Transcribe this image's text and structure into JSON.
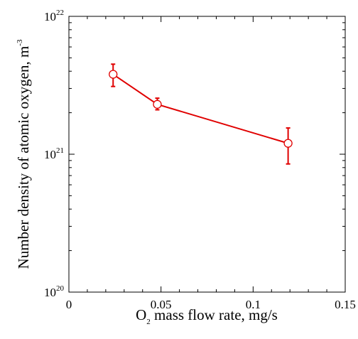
{
  "chart_data": {
    "type": "line",
    "xlabel_main": "O",
    "xlabel_sub": "2",
    "xlabel_rest": " mass flow rate, mg/s",
    "ylabel_main": "Number density of atomic oxygen, m",
    "ylabel_sup": "-3",
    "xlim": [
      0,
      0.15
    ],
    "ylim": [
      1e+20,
      1e+22
    ],
    "yscale": "log",
    "grid": false,
    "x_ticks": [
      {
        "value": 0,
        "label": "0"
      },
      {
        "value": 0.05,
        "label": "0.05"
      },
      {
        "value": 0.1,
        "label": "0.1"
      },
      {
        "value": 0.15,
        "label": "0.15"
      }
    ],
    "y_ticks": [
      {
        "value": 1e+20,
        "base": "10",
        "exp": "20"
      },
      {
        "value": 1e+21,
        "base": "10",
        "exp": "21"
      },
      {
        "value": 1e+22,
        "base": "10",
        "exp": "22"
      }
    ],
    "series": [
      {
        "color": "#e00000",
        "marker": "open-circle",
        "x": [
          0.024,
          0.048,
          0.119
        ],
        "y": [
          3.8e+21,
          2.3e+21,
          1.2e+21
        ],
        "err_low": [
          3.1e+21,
          2.1e+21,
          8.5e+20
        ],
        "err_high": [
          4.5e+21,
          2.55e+21,
          1.55e+21
        ]
      }
    ]
  }
}
